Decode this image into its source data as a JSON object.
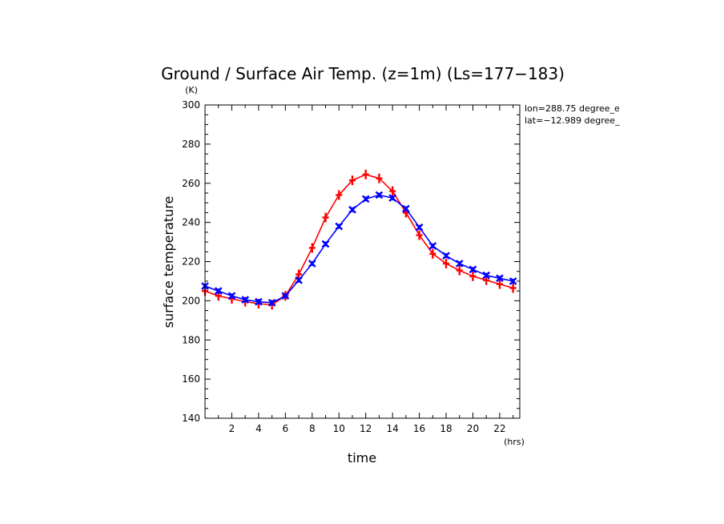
{
  "chart_data": {
    "type": "line",
    "title": "Ground / Surface Air Temp. (z=1m) (Ls=177−183)",
    "xlabel": "time",
    "ylabel": "surface temperature",
    "x_unit": "(hrs)",
    "y_unit": "(K)",
    "xlim": [
      0,
      23.5
    ],
    "ylim": [
      140,
      300
    ],
    "x_ticks": [
      2,
      4,
      6,
      8,
      10,
      12,
      14,
      16,
      18,
      20,
      22
    ],
    "x_tick_labels": [
      "2",
      "4",
      "6",
      "8",
      "10",
      "12",
      "14",
      "16",
      "18",
      "20",
      "22"
    ],
    "y_ticks": [
      140,
      160,
      180,
      200,
      220,
      240,
      260,
      280,
      300
    ],
    "y_tick_labels": [
      "140",
      "160",
      "180",
      "200",
      "220",
      "240",
      "260",
      "280",
      "300"
    ],
    "grid": false,
    "annotations": [
      "lon=288.75 degree_e",
      "lat=−12.989 degree_"
    ],
    "x": [
      0,
      1,
      2,
      3,
      4,
      5,
      6,
      7,
      8,
      9,
      10,
      11,
      12,
      13,
      14,
      15,
      16,
      17,
      18,
      19,
      20,
      21,
      22,
      23
    ],
    "series": [
      {
        "color": "#ff0000",
        "marker": "plus",
        "values": [
          205,
          202.5,
          201,
          199.5,
          198.5,
          198,
          202.5,
          213.5,
          227,
          242.5,
          254,
          261.5,
          264.5,
          262.5,
          256,
          245,
          233.5,
          224,
          219,
          215.5,
          212.5,
          210.5,
          208.5,
          206.5
        ]
      },
      {
        "color": "#0000ff",
        "marker": "x",
        "values": [
          207.5,
          205,
          202.5,
          200.5,
          199.5,
          199,
          202.5,
          210.5,
          219,
          229,
          238,
          246.5,
          252,
          254,
          252.5,
          247,
          237.5,
          228,
          223,
          219,
          216,
          213,
          211.5,
          210
        ]
      }
    ]
  }
}
